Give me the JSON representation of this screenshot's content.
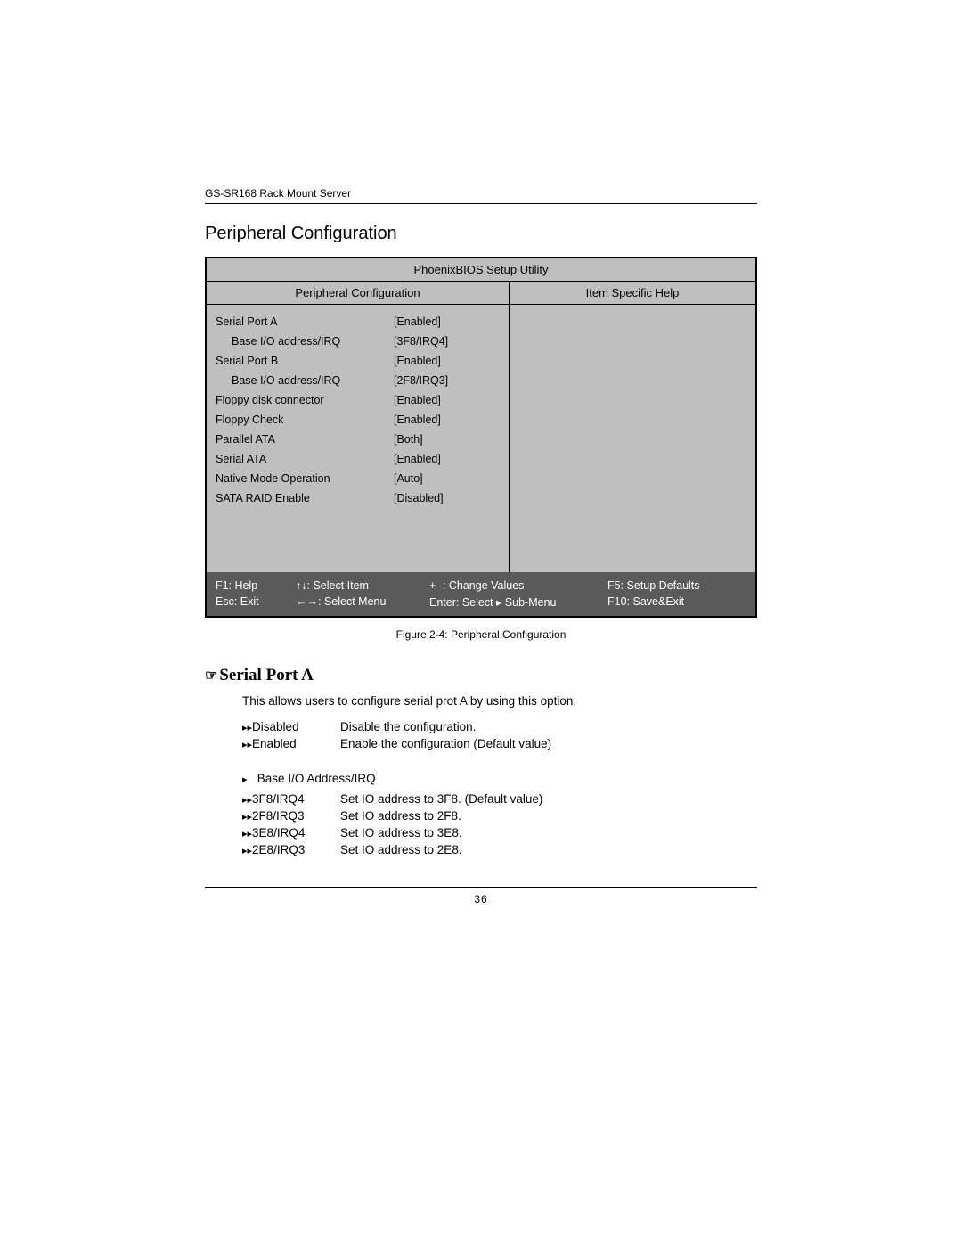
{
  "doc_header": "GS-SR168 Rack Mount Server",
  "section_title": "Peripheral Configuration",
  "bios": {
    "title": "PhoenixBIOS Setup Utility",
    "left_header": "Peripheral Configuration",
    "right_header": "Item Specific Help",
    "rows": [
      {
        "label": "Serial Port A",
        "value": "[Enabled]",
        "indent": false
      },
      {
        "label": "Base I/O address/IRQ",
        "value": "[3F8/IRQ4]",
        "indent": true
      },
      {
        "label": "Serial Port B",
        "value": "[Enabled]",
        "indent": false
      },
      {
        "label": "Base I/O address/IRQ",
        "value": "[2F8/IRQ3]",
        "indent": true
      },
      {
        "label": "Floppy disk  connector",
        "value": "[Enabled]",
        "indent": false
      },
      {
        "label": "Floppy Check",
        "value": "[Enabled]",
        "indent": false
      },
      {
        "label": "Parallel ATA",
        "value": "[Both]",
        "indent": false
      },
      {
        "label": "Serial ATA",
        "value": "[Enabled]",
        "indent": false
      },
      {
        "label": "Native Mode Operation",
        "value": "[Auto]",
        "indent": false
      },
      {
        "label": "SATA RAID Enable",
        "value": "[Disabled]",
        "indent": false
      }
    ],
    "footer": {
      "row1": {
        "c1": "F1: Help",
        "c2": "↑↓: Select Item",
        "c3": "+ -: Change Values",
        "c4": "F5: Setup Defaults"
      },
      "row2": {
        "c1": "Esc: Exit",
        "c2": "←→: Select Menu",
        "c3": "Enter: Select ▸ Sub-Menu",
        "c4": "F10: Save&Exit"
      }
    }
  },
  "caption": "Figure 2-4: Peripheral Configuration",
  "serial": {
    "title": "Serial Port A",
    "desc": "This allows users to configure serial prot A  by using this option.",
    "opts": [
      {
        "key": "Disabled",
        "val": "Disable the configuration."
      },
      {
        "key": "Enabled",
        "val": "Enable the configuration (Default value)"
      }
    ],
    "sub_heading": "Base I/O Address/IRQ",
    "sub_opts": [
      {
        "key": "3F8/IRQ4",
        "val": "Set IO address to 3F8.    (Default value)"
      },
      {
        "key": "2F8/IRQ3",
        "val": "Set IO address to 2F8."
      },
      {
        "key": "3E8/IRQ4",
        "val": "Set IO address to 3E8."
      },
      {
        "key": "2E8/IRQ3",
        "val": "Set IO address to 2E8."
      }
    ]
  },
  "page_number": "36",
  "colors": {
    "bios_bg": "#bfbfbf",
    "footer_bg": "#5a5a5a",
    "text": "#000000",
    "footer_text": "#ffffff"
  }
}
